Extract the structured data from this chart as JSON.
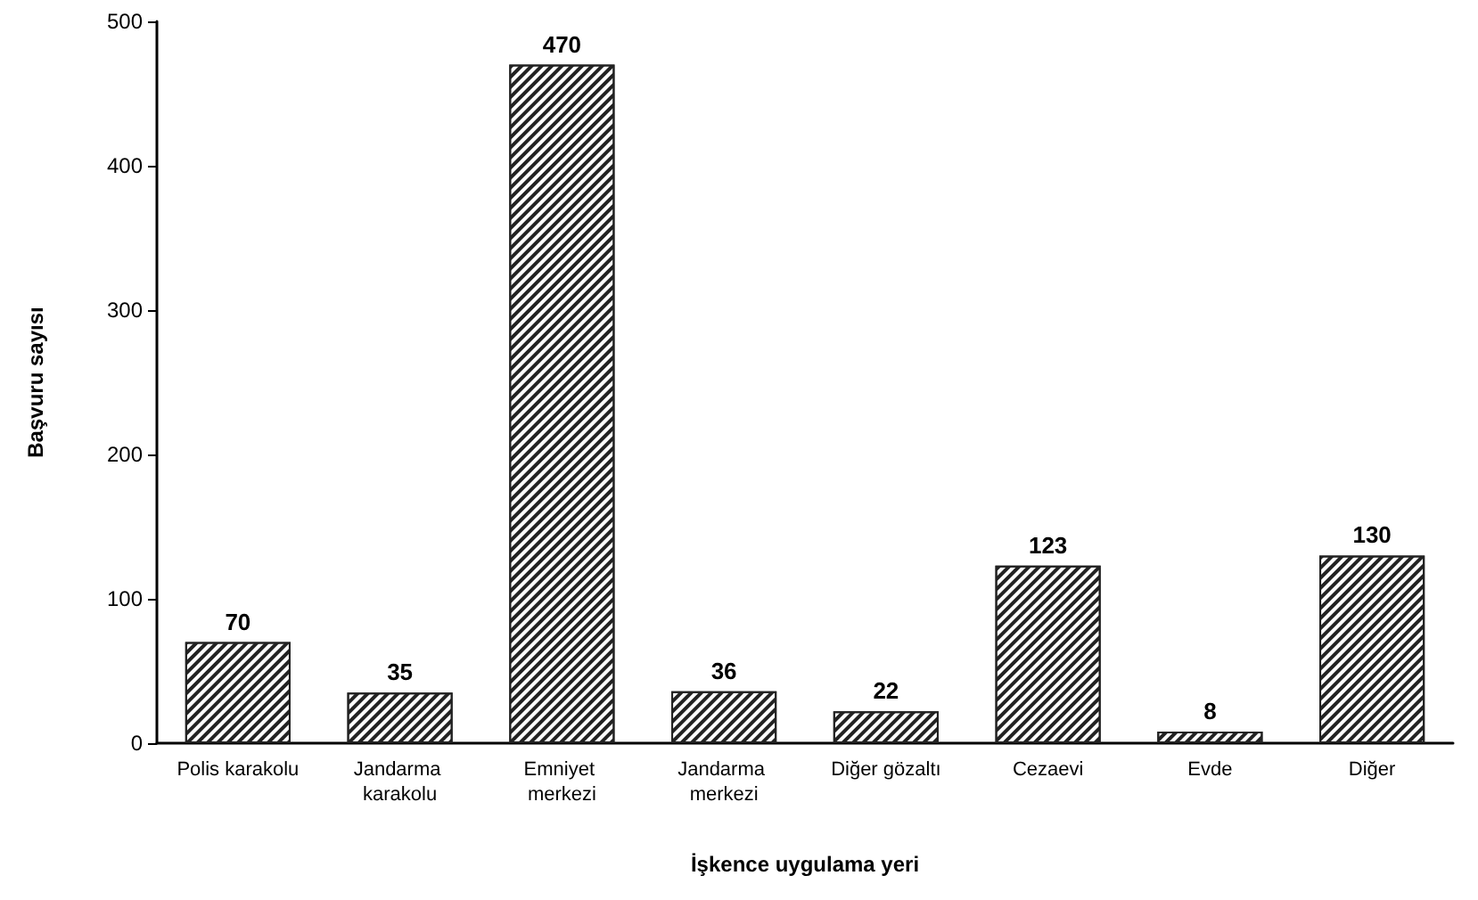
{
  "chart_data": {
    "type": "bar",
    "xlabel": "İşkence uygulama yeri",
    "ylabel": "Başvuru sayısı",
    "categories": [
      "Polis karakolu",
      "Jandarma karakolu",
      "Emniyet merkezi",
      "Jandarma merkezi",
      "Diğer gözaltı",
      "Cezaevi",
      "Evde",
      "Diğer"
    ],
    "values": [
      70,
      35,
      470,
      36,
      22,
      123,
      8,
      130
    ],
    "color": "#222222",
    "ylim": [
      0,
      500
    ],
    "yticks": [
      0,
      100,
      200,
      300,
      400,
      500
    ],
    "grid": false,
    "data_labels": true
  }
}
